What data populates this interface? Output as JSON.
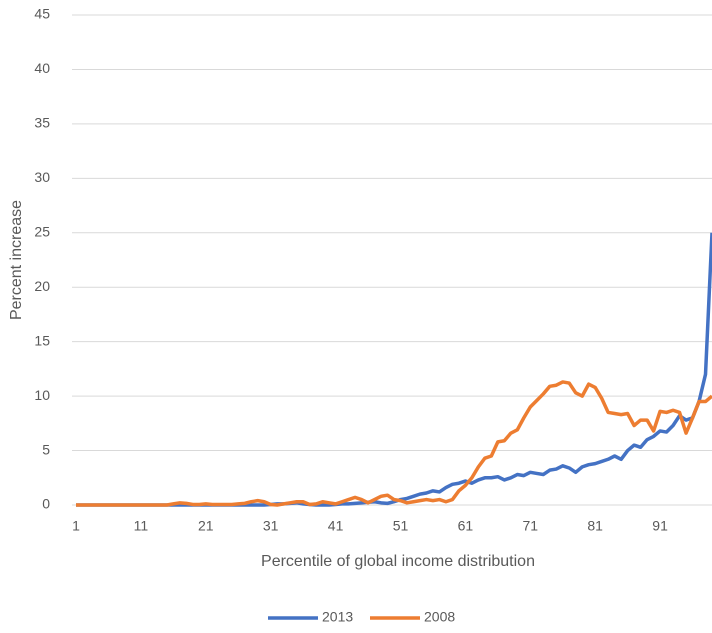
{
  "chart_data": {
    "type": "line",
    "x_label": "Percentile of global income distribution",
    "y_label": "Percent increase",
    "x": [
      1,
      2,
      3,
      4,
      5,
      6,
      7,
      8,
      9,
      10,
      11,
      12,
      13,
      14,
      15,
      16,
      17,
      18,
      19,
      20,
      21,
      22,
      23,
      24,
      25,
      26,
      27,
      28,
      29,
      30,
      31,
      32,
      33,
      34,
      35,
      36,
      37,
      38,
      39,
      40,
      41,
      42,
      43,
      44,
      45,
      46,
      47,
      48,
      49,
      50,
      51,
      52,
      53,
      54,
      55,
      56,
      57,
      58,
      59,
      60,
      61,
      62,
      63,
      64,
      65,
      66,
      67,
      68,
      69,
      70,
      71,
      72,
      73,
      74,
      75,
      76,
      77,
      78,
      79,
      80,
      81,
      82,
      83,
      84,
      85,
      86,
      87,
      88,
      89,
      90,
      91,
      92,
      93,
      94,
      95,
      96,
      97,
      98,
      99
    ],
    "series": [
      {
        "name": "2013",
        "color": "#4472c4",
        "values": [
          0,
          0,
          0,
          0,
          0,
          0,
          0,
          0,
          0,
          0,
          0,
          0,
          0,
          0,
          0,
          0,
          0,
          0,
          0,
          0,
          0,
          0,
          0,
          0,
          0,
          0,
          0,
          0,
          0,
          0,
          0.05,
          0.1,
          0.1,
          0.15,
          0.2,
          0.1,
          0.05,
          0,
          0,
          0,
          0.05,
          0.1,
          0.1,
          0.15,
          0.2,
          0.25,
          0.3,
          0.2,
          0.15,
          0.3,
          0.5,
          0.6,
          0.8,
          1.0,
          1.1,
          1.3,
          1.2,
          1.6,
          1.9,
          2.0,
          2.2,
          2.0,
          2.3,
          2.5,
          2.5,
          2.6,
          2.3,
          2.5,
          2.8,
          2.7,
          3.0,
          2.9,
          2.8,
          3.2,
          3.3,
          3.6,
          3.4,
          3.0,
          3.5,
          3.7,
          3.8,
          4.0,
          4.2,
          4.5,
          4.2,
          5.0,
          5.5,
          5.3,
          6.0,
          6.3,
          6.8,
          6.7,
          7.3,
          8.2,
          7.8,
          8.0,
          9.5,
          12,
          25
        ]
      },
      {
        "name": "2008",
        "color": "#ed7d31",
        "values": [
          0,
          0,
          0,
          0,
          0,
          0,
          0,
          0,
          0,
          0,
          0,
          0,
          0,
          0,
          0,
          0.1,
          0.2,
          0.15,
          0.05,
          0.05,
          0.1,
          0.05,
          0.05,
          0.05,
          0.05,
          0.1,
          0.15,
          0.3,
          0.4,
          0.3,
          0.05,
          0,
          0.1,
          0.2,
          0.3,
          0.3,
          0.05,
          0.1,
          0.3,
          0.2,
          0.1,
          0.3,
          0.5,
          0.7,
          0.5,
          0.2,
          0.5,
          0.8,
          0.9,
          0.5,
          0.4,
          0.2,
          0.3,
          0.4,
          0.5,
          0.4,
          0.5,
          0.3,
          0.5,
          1.3,
          1.8,
          2.5,
          3.5,
          4.3,
          4.5,
          5.8,
          5.9,
          6.6,
          6.9,
          8.0,
          9.0,
          9.6,
          10.2,
          10.9,
          11.0,
          11.3,
          11.2,
          10.3,
          10.0,
          11.1,
          10.8,
          9.8,
          8.5,
          8.4,
          8.3,
          8.4,
          7.3,
          7.8,
          7.8,
          6.8,
          8.6,
          8.5,
          8.7,
          8.5,
          6.6,
          8.0,
          9.5,
          9.5,
          10.0
        ]
      }
    ],
    "xlim": [
      1,
      99
    ],
    "xticks": [
      1,
      11,
      21,
      31,
      41,
      51,
      61,
      71,
      81,
      91
    ],
    "ylim": [
      0,
      45
    ],
    "yticks": [
      0,
      5,
      10,
      15,
      20,
      25,
      30,
      35,
      40,
      45
    ],
    "grid": true,
    "legend": "bottom"
  }
}
